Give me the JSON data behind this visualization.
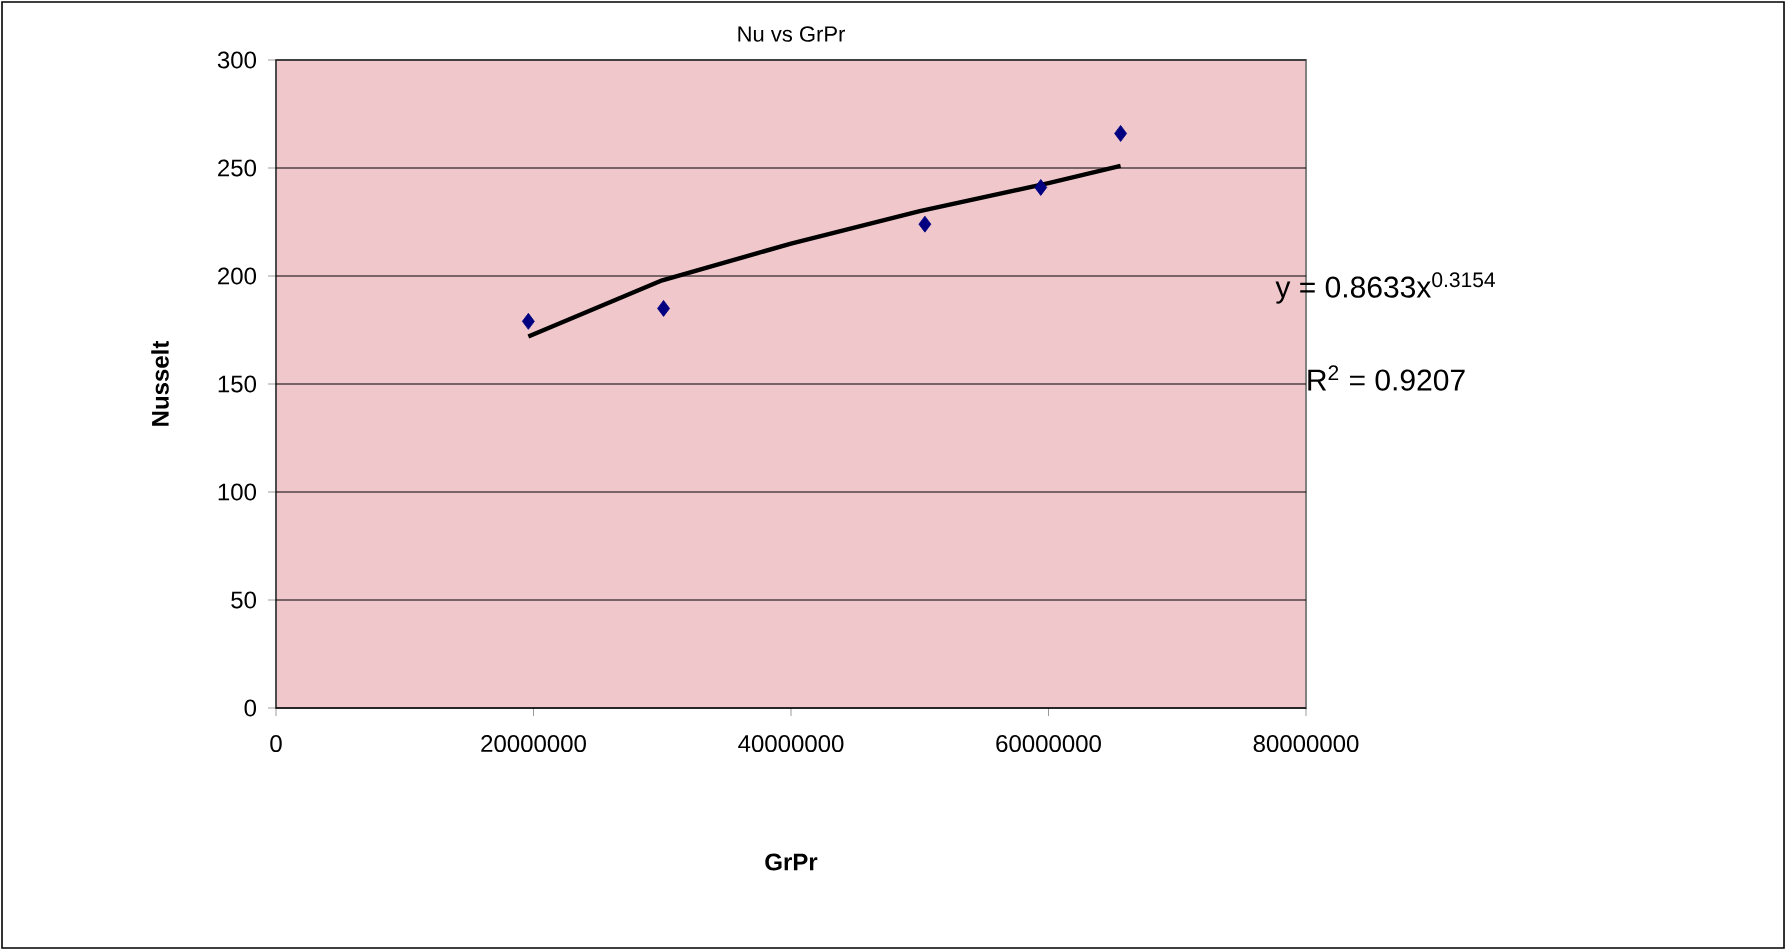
{
  "chart_data": {
    "type": "scatter",
    "title": "Nu vs GrPr",
    "xlabel": "GrPr",
    "ylabel": "Nusselt",
    "xlim": [
      0,
      80000000
    ],
    "xticks": [
      0,
      20000000,
      40000000,
      60000000,
      80000000
    ],
    "ylim": [
      0,
      300
    ],
    "yticks": [
      0,
      50,
      100,
      150,
      200,
      250,
      300
    ],
    "grid": "y",
    "marker": "diamond",
    "series": [
      {
        "color": "#000080",
        "x": [
          19600000,
          30100000,
          50400000,
          59400000,
          65600000
        ],
        "values": [
          179,
          185,
          224,
          241,
          266
        ]
      },
      {
        "type": "line",
        "color": "#000000",
        "marker": "none",
        "line_style": "solid",
        "x": [
          19600000,
          30000000,
          40000000,
          50000000,
          60000000,
          65600000
        ],
        "values": [
          172,
          198,
          215,
          230,
          243,
          251
        ]
      }
    ],
    "annotations": [
      "y = 0.8633x$^{0.3154}$",
      "R$^{2}$ = 0.9207"
    ]
  }
}
